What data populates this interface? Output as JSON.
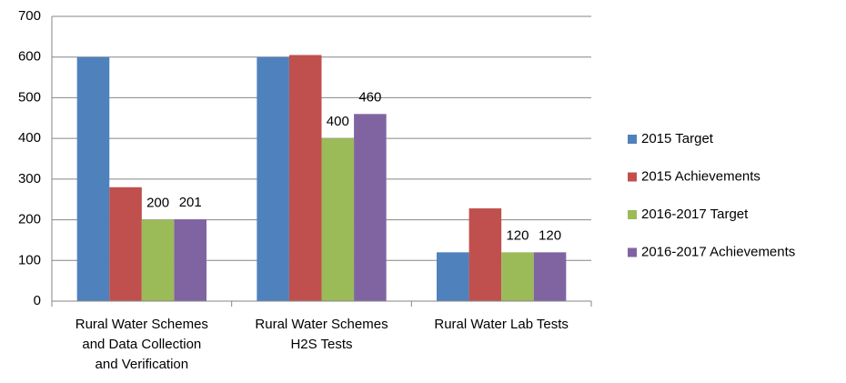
{
  "chart_data": {
    "type": "bar",
    "categories": [
      "Rural Water Schemes and Data Collection and Verification",
      "Rural Water Schemes H2S Tests",
      "Rural Water Lab Tests"
    ],
    "series": [
      {
        "name": "2015 Target",
        "color": "#4f81bd",
        "values": [
          600,
          600,
          120
        ],
        "data_labels": false
      },
      {
        "name": "2015 Achievements",
        "color": "#c0504d",
        "values": [
          280,
          605,
          228
        ],
        "data_labels": false
      },
      {
        "name": "2016-2017 Target",
        "color": "#9bbb59",
        "values": [
          200,
          400,
          120
        ],
        "data_labels": true
      },
      {
        "name": "2016-2017 Achievements",
        "color": "#8064a2",
        "values": [
          201,
          460,
          120
        ],
        "data_labels": true
      }
    ],
    "ylim": [
      0,
      700
    ],
    "yticks": [
      0,
      100,
      200,
      300,
      400,
      500,
      600,
      700
    ],
    "grid": true,
    "legend": "right"
  }
}
